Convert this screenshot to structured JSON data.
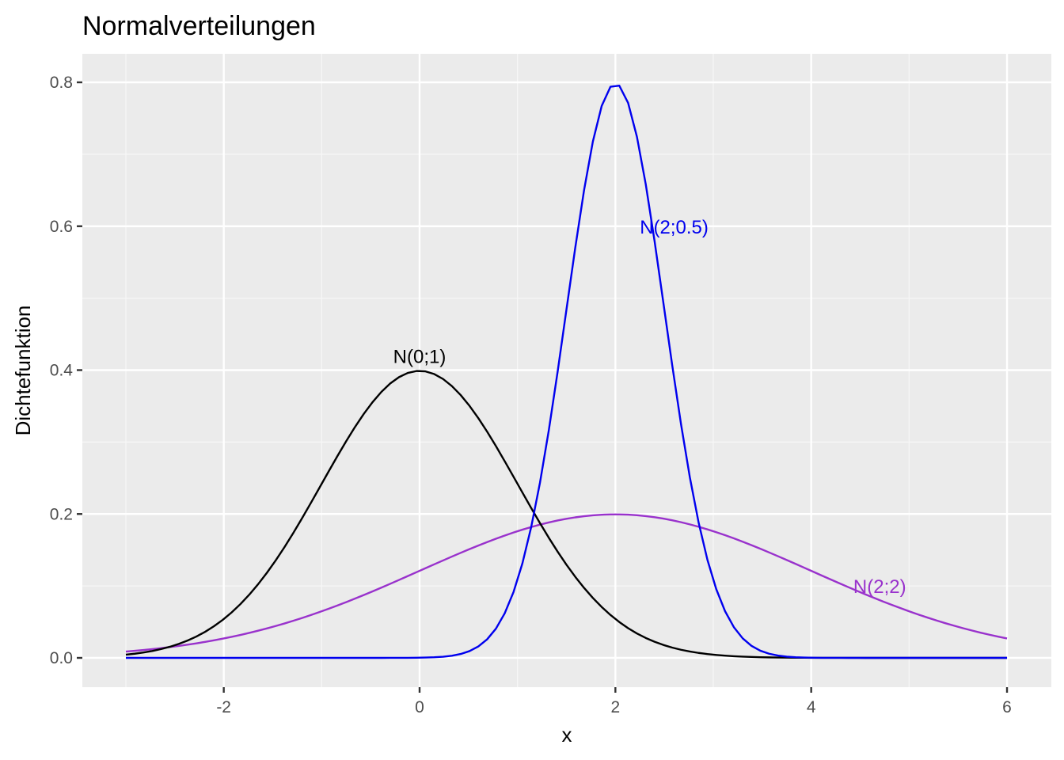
{
  "chart_data": {
    "type": "line",
    "title": "Normalverteilungen",
    "xlabel": "x",
    "ylabel": "Dichtefunktion",
    "xlim": [
      -3,
      6
    ],
    "ylim": [
      0,
      0.8
    ],
    "x_ticks": [
      -2,
      0,
      2,
      4,
      6
    ],
    "x_tick_labels": [
      "-2",
      "0",
      "2",
      "4",
      "6"
    ],
    "y_ticks": [
      0.0,
      0.2,
      0.4,
      0.6,
      0.8
    ],
    "y_tick_labels": [
      "0.0",
      "0.2",
      "0.4",
      "0.6",
      "0.8"
    ],
    "grid": true,
    "legend": "none",
    "background": "#ebebeb",
    "series": [
      {
        "name": "N(0;1)",
        "mean": 0,
        "sd": 1,
        "color": "#000000",
        "x": [
          -3,
          -2,
          -1,
          0,
          1,
          2,
          3,
          4,
          5,
          6
        ],
        "values": [
          0.004,
          0.054,
          0.242,
          0.399,
          0.242,
          0.054,
          0.004,
          0.0001,
          0.0,
          0.0
        ],
        "label": "N(0;1)",
        "label_pos": [
          0,
          0.42
        ]
      },
      {
        "name": "N(2;0.5)",
        "mean": 2,
        "sd": 0.5,
        "color": "#0000ee",
        "x": [
          -3,
          -2,
          -1,
          0,
          1,
          1.5,
          2,
          2.5,
          3,
          4,
          5,
          6
        ],
        "values": [
          0.0,
          0.0,
          0.0,
          0.0003,
          0.108,
          0.484,
          0.798,
          0.484,
          0.108,
          0.0003,
          0.0,
          0.0
        ],
        "label": "N(2;0.5)",
        "label_pos": [
          2.6,
          0.6
        ]
      },
      {
        "name": "N(2;2)",
        "mean": 2,
        "sd": 2,
        "color": "#9932cc",
        "x": [
          -3,
          -2,
          -1,
          0,
          1,
          2,
          3,
          4,
          5,
          6
        ],
        "values": [
          0.009,
          0.027,
          0.065,
          0.121,
          0.176,
          0.199,
          0.176,
          0.121,
          0.065,
          0.027
        ],
        "label": "N(2;2)",
        "label_pos": [
          4.7,
          0.1
        ]
      }
    ]
  }
}
